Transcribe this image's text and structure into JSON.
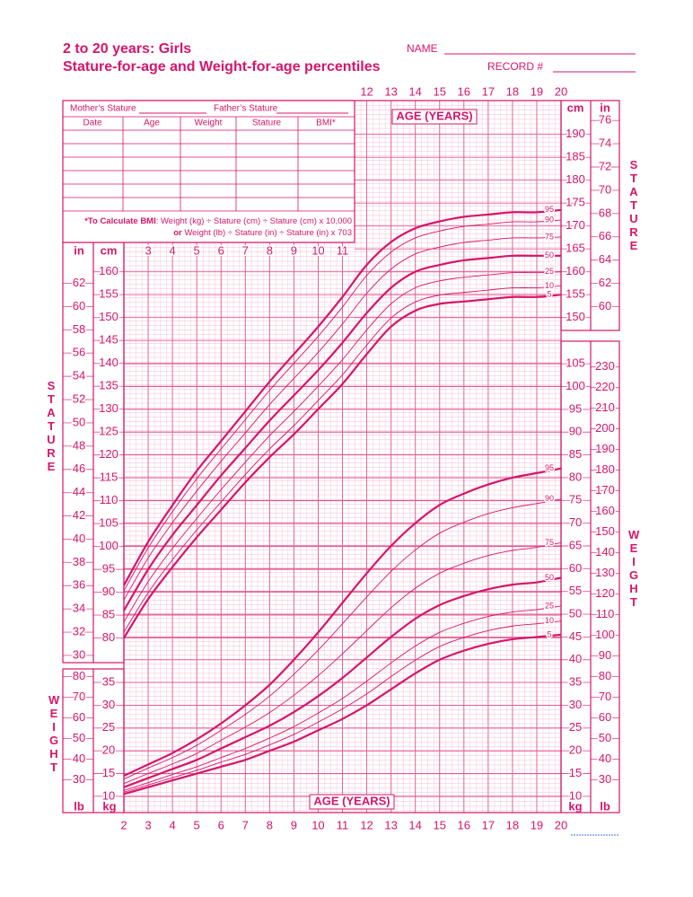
{
  "header": {
    "title": "2 to 20 years: Girls",
    "subtitle": "Stature-for-age and Weight-for-age percentiles",
    "name_label": "NAME",
    "record_label": "RECORD #"
  },
  "form": {
    "mother": "Mother’s Stature",
    "father": "Father’s Stature",
    "columns": [
      "Date",
      "Age",
      "Weight",
      "Stature",
      "BMI*"
    ],
    "bmi_note": [
      {
        "bold": "*To Calculate BMI",
        "text": ": Weight (kg) ÷ Stature (cm) ÷ Stature (cm) x 10,000"
      },
      {
        "bold": "or",
        "text": " Weight (lb) ÷ Stature (in) ÷ Stature (in) x 703"
      }
    ]
  },
  "chart_data": [
    {
      "type": "line",
      "x_label": "AGE (YEARS)",
      "y_label": "STATURE",
      "y_unit": "cm",
      "y2_unit": "in",
      "color": "#d6156a",
      "x": [
        2,
        3,
        4,
        5,
        6,
        7,
        8,
        9,
        10,
        11,
        12,
        13,
        14,
        15,
        16,
        17,
        18,
        19,
        20
      ],
      "xlim": [
        2,
        20
      ],
      "xticks_top": [
        12,
        13,
        14,
        15,
        16,
        17,
        18,
        19,
        20
      ],
      "xticks_inner": [
        3,
        4,
        5,
        6,
        7,
        8,
        9,
        10,
        11
      ],
      "ylim": [
        76,
        197
      ],
      "yticks": [
        80,
        85,
        90,
        95,
        100,
        105,
        110,
        115,
        120,
        125,
        130,
        135,
        140,
        145,
        150,
        155,
        160
      ],
      "yticks_right": [
        150,
        155,
        160,
        165,
        170,
        175,
        180,
        185,
        190
      ],
      "y2lim": [
        29.92,
        77.56
      ],
      "y2ticks": [
        30,
        32,
        34,
        36,
        38,
        40,
        42,
        44,
        46,
        48,
        50,
        52,
        54,
        56,
        58,
        60,
        62
      ],
      "y2ticks_right": [
        60,
        62,
        64,
        66,
        68,
        70,
        72,
        74,
        76
      ],
      "series": [
        {
          "name": "5",
          "line_width": 2.2,
          "values": [
            80,
            88.5,
            95.5,
            102,
            108,
            114,
            119.5,
            124.5,
            130,
            135.5,
            142,
            148,
            151.5,
            153,
            153.5,
            154,
            154.5,
            154.5,
            155
          ]
        },
        {
          "name": "10",
          "line_width": 0.9,
          "values": [
            81.3,
            89.9,
            97.1,
            103.6,
            109.7,
            115.7,
            121.3,
            126.4,
            131.9,
            137.5,
            144,
            149.9,
            153.4,
            154.9,
            155.5,
            156,
            156.5,
            156.5,
            156.9
          ]
        },
        {
          "name": "25",
          "line_width": 0.9,
          "values": [
            83.5,
            92.3,
            99.6,
            106.1,
            112.4,
            118.4,
            124.2,
            129.5,
            135,
            140.8,
            147.3,
            153,
            156.5,
            158,
            158.8,
            159.3,
            159.8,
            159.8,
            160
          ]
        },
        {
          "name": "50",
          "line_width": 2.2,
          "values": [
            86,
            95,
            102.5,
            109,
            115.5,
            121.5,
            127.5,
            133,
            138.5,
            144.5,
            151,
            156.5,
            160,
            161.5,
            162.5,
            163,
            163.5,
            163.5,
            163.5
          ]
        },
        {
          "name": "75",
          "line_width": 0.9,
          "values": [
            88.3,
            97.5,
            105.2,
            112.1,
            118.6,
            124.8,
            131,
            136.7,
            142.4,
            148.6,
            155.3,
            160.6,
            163.9,
            165.4,
            166.4,
            166.9,
            167.4,
            167.4,
            167.6
          ]
        },
        {
          "name": "90",
          "line_width": 0.9,
          "values": [
            90.3,
            99.7,
            107.6,
            114.8,
            121.3,
            127.7,
            134.1,
            140,
            145.9,
            152.3,
            159.2,
            164.3,
            167.4,
            168.9,
            169.9,
            170.4,
            170.9,
            170.9,
            171.3
          ]
        },
        {
          "name": "95",
          "line_width": 2.2,
          "values": [
            91.5,
            101,
            109,
            116.5,
            123,
            129.5,
            136,
            142,
            148,
            154.5,
            161.5,
            166.5,
            169.5,
            171,
            172,
            172.5,
            173,
            173,
            173.5
          ]
        }
      ]
    },
    {
      "type": "line",
      "x_label": "AGE (YEARS)",
      "y_label": "WEIGHT",
      "y_unit": "kg",
      "y2_unit": "lb",
      "color": "#d6156a",
      "x": [
        2,
        3,
        4,
        5,
        6,
        7,
        8,
        9,
        10,
        11,
        12,
        13,
        14,
        15,
        16,
        17,
        18,
        19,
        20
      ],
      "xlim": [
        2,
        20
      ],
      "xticks": [
        2,
        3,
        4,
        5,
        6,
        7,
        8,
        9,
        10,
        11,
        12,
        13,
        14,
        15,
        16,
        17,
        18,
        19,
        20
      ],
      "ylim": [
        8,
        108
      ],
      "yticks": [
        10,
        15,
        20,
        25,
        30,
        35
      ],
      "yticks_right": [
        10,
        15,
        20,
        25,
        30,
        35,
        40,
        45,
        50,
        55,
        60,
        65,
        70,
        75,
        80,
        85,
        90,
        95,
        100,
        105
      ],
      "y2lim": [
        17.64,
        238.1
      ],
      "y2ticks": [
        30,
        40,
        50,
        60,
        70,
        80
      ],
      "y2ticks_right": [
        30,
        40,
        50,
        60,
        70,
        80,
        90,
        100,
        110,
        120,
        130,
        140,
        150,
        160,
        170,
        180,
        190,
        200,
        210,
        220,
        230
      ],
      "series": [
        {
          "name": "5",
          "line_width": 2.2,
          "values": [
            10.5,
            12,
            13.5,
            15,
            16.5,
            18,
            20,
            22,
            24.5,
            27,
            30,
            33.5,
            37,
            40,
            42,
            43.5,
            44.5,
            45,
            45.5
          ]
        },
        {
          "name": "10",
          "line_width": 0.9,
          "values": [
            10.9,
            12.5,
            14.1,
            15.7,
            17.5,
            19.2,
            21.3,
            23.6,
            26.3,
            29.2,
            32.5,
            36.3,
            39.9,
            42.9,
            44.9,
            46.4,
            47.4,
            47.9,
            48.5
          ]
        },
        {
          "name": "25",
          "line_width": 0.9,
          "values": [
            11.3,
            13,
            14.8,
            16.5,
            18.5,
            20.5,
            22.8,
            25.3,
            28.3,
            31.5,
            35.3,
            39.3,
            43,
            46,
            48,
            49.5,
            50.5,
            51,
            51.8
          ]
        },
        {
          "name": "50",
          "line_width": 2.2,
          "values": [
            12,
            14,
            16,
            18,
            20.5,
            23,
            25.5,
            28.5,
            32,
            36,
            40.5,
            45,
            49,
            52,
            54,
            55.5,
            56.5,
            57,
            58
          ]
        },
        {
          "name": "75",
          "line_width": 0.9,
          "values": [
            12.8,
            15,
            17.1,
            19.4,
            22.3,
            25.2,
            28.4,
            32.2,
            36.5,
            41.3,
            46.4,
            51.4,
            55.7,
            59,
            61.2,
            62.9,
            64,
            64.7,
            65.7
          ]
        },
        {
          "name": "90",
          "line_width": 0.9,
          "values": [
            13.8,
            16.2,
            18.5,
            21.2,
            24.5,
            28,
            32,
            36.8,
            42.1,
            47.9,
            53.8,
            59.4,
            64.1,
            67.8,
            70.2,
            72.1,
            73.4,
            74.3,
            75.3
          ]
        },
        {
          "name": "95",
          "line_width": 2.2,
          "values": [
            14.5,
            17,
            19.5,
            22.5,
            26,
            30,
            34.5,
            40,
            46,
            52.5,
            59,
            65,
            70,
            74,
            76.5,
            78.5,
            80,
            81,
            82
          ]
        }
      ]
    }
  ]
}
